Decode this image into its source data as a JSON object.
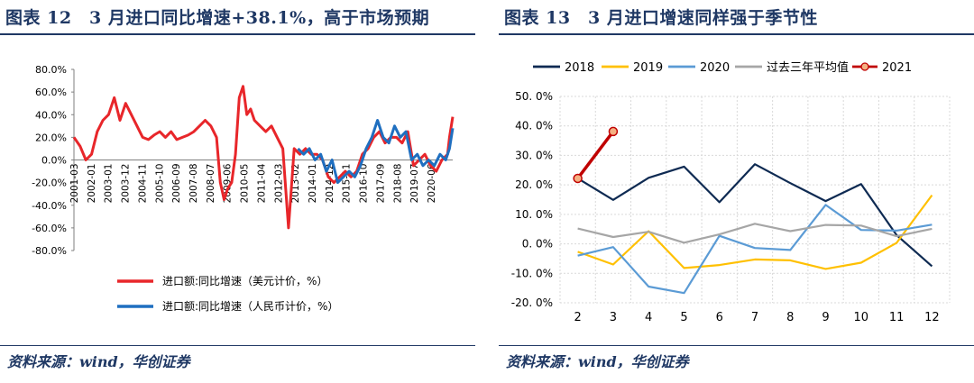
{
  "left": {
    "title": "图表 12　3 月进口同比增速+38.1%，高于市场预期",
    "source": "资料来源：wind，华创证券"
  },
  "right": {
    "title": "图表 13　3 月进口增速同样强于季节性",
    "source": "资料来源：wind，华创证券"
  },
  "chart_data": [
    {
      "type": "line",
      "title": "",
      "xlabel": "",
      "ylabel": "",
      "ylim": [
        -0.8,
        0.8
      ],
      "y_ticks": [
        "80.0%",
        "60.0%",
        "40.0%",
        "20.0%",
        "0.0%",
        "-20.0%",
        "-40.0%",
        "-60.0%",
        "-80.0%"
      ],
      "x_ticks": [
        "2001-03",
        "2002-01",
        "2003-01",
        "2003-12",
        "2004-11",
        "2005-10",
        "2006-09",
        "2007-08",
        "2008-07",
        "2009-06",
        "2010-05",
        "2011-04",
        "2012-03",
        "2013-02",
        "2014-01",
        "2014-12",
        "2015-11",
        "2016-10",
        "2017-09",
        "2018-08",
        "2019-07",
        "2020-06"
      ],
      "legend_position": "bottom",
      "grid": false,
      "series": [
        {
          "name": "进口额:同比增速（美元计价，%）",
          "color": "#e8262a",
          "x": [
            2001.17,
            2001.5,
            2001.8,
            2002.1,
            2002.4,
            2002.7,
            2003.0,
            2003.3,
            2003.6,
            2003.9,
            2004.2,
            2004.5,
            2004.8,
            2005.1,
            2005.4,
            2005.7,
            2006.0,
            2006.3,
            2006.6,
            2006.9,
            2007.2,
            2007.5,
            2007.8,
            2008.1,
            2008.4,
            2008.7,
            2008.9,
            2009.1,
            2009.3,
            2009.5,
            2009.7,
            2009.9,
            2010.1,
            2010.3,
            2010.5,
            2010.7,
            2011.0,
            2011.3,
            2011.6,
            2011.9,
            2012.2,
            2012.5,
            2012.8,
            2013.1,
            2013.4,
            2013.7,
            2014.0,
            2014.3,
            2014.6,
            2014.9,
            2015.2,
            2015.5,
            2015.8,
            2016.1,
            2016.4,
            2016.7,
            2017.0,
            2017.3,
            2017.6,
            2017.9,
            2018.2,
            2018.5,
            2018.8,
            2019.1,
            2019.4,
            2019.7,
            2020.0,
            2020.3,
            2020.6,
            2020.9,
            2021.0,
            2021.17
          ],
          "values": [
            0.2,
            0.12,
            0.0,
            0.05,
            0.25,
            0.35,
            0.4,
            0.55,
            0.35,
            0.5,
            0.4,
            0.3,
            0.2,
            0.18,
            0.22,
            0.25,
            0.2,
            0.25,
            0.18,
            0.2,
            0.22,
            0.25,
            0.3,
            0.35,
            0.3,
            0.2,
            -0.2,
            -0.35,
            -0.25,
            -0.2,
            0.05,
            0.55,
            0.65,
            0.4,
            0.45,
            0.35,
            0.3,
            0.25,
            0.3,
            0.2,
            0.1,
            -0.6,
            0.1,
            0.05,
            0.1,
            0.05,
            0.05,
            0.0,
            -0.15,
            -0.2,
            -0.15,
            -0.1,
            -0.15,
            -0.1,
            0.05,
            0.1,
            0.2,
            0.25,
            0.15,
            0.2,
            0.2,
            0.15,
            0.25,
            -0.05,
            0.0,
            0.05,
            -0.05,
            -0.1,
            0.0,
            0.05,
            0.2,
            0.381
          ]
        },
        {
          "name": "进口额:同比增速（人民币计价，%）",
          "color": "#1f6fc0",
          "x": [
            2013.0,
            2013.3,
            2013.6,
            2013.9,
            2014.2,
            2014.5,
            2014.8,
            2015.1,
            2015.4,
            2015.7,
            2016.0,
            2016.3,
            2016.6,
            2016.9,
            2017.2,
            2017.5,
            2017.8,
            2018.1,
            2018.4,
            2018.7,
            2019.0,
            2019.3,
            2019.6,
            2019.9,
            2020.2,
            2020.5,
            2020.8,
            2021.0,
            2021.17
          ],
          "values": [
            0.1,
            0.05,
            0.1,
            0.0,
            0.05,
            -0.1,
            0.0,
            -0.2,
            -0.15,
            -0.1,
            -0.15,
            -0.05,
            0.1,
            0.2,
            0.35,
            0.2,
            0.15,
            0.3,
            0.2,
            0.25,
            0.0,
            0.05,
            -0.05,
            0.0,
            -0.05,
            0.05,
            0.0,
            0.1,
            0.28
          ]
        }
      ]
    },
    {
      "type": "line",
      "title": "",
      "xlabel": "",
      "ylabel": "",
      "ylim": [
        -20,
        50
      ],
      "y_ticks": [
        "50. 0%",
        "40. 0%",
        "30. 0%",
        "20. 0%",
        "10. 0%",
        "0. 0%",
        "-10. 0%",
        "-20. 0%"
      ],
      "categories": [
        "2",
        "3",
        "4",
        "5",
        "6",
        "7",
        "8",
        "9",
        "10",
        "11",
        "12"
      ],
      "legend_position": "top",
      "grid": true,
      "series": [
        {
          "name": "2018",
          "color": "#0e2a52",
          "marker": false,
          "values": [
            22.2,
            14.9,
            22.4,
            26.2,
            14.1,
            27.0,
            20.6,
            14.5,
            20.3,
            3.0,
            -7.6
          ]
        },
        {
          "name": "2019",
          "color": "#ffc000",
          "marker": false,
          "values": [
            -2.7,
            -7.0,
            4.3,
            -8.2,
            -7.2,
            -5.3,
            -5.6,
            -8.5,
            -6.4,
            0.3,
            16.5
          ]
        },
        {
          "name": "2020",
          "color": "#5b9bd5",
          "marker": false,
          "values": [
            -4.0,
            -1.1,
            -14.5,
            -16.7,
            2.7,
            -1.4,
            -2.1,
            13.2,
            4.7,
            4.5,
            6.5
          ]
        },
        {
          "name": "过去三年平均值",
          "color": "#a6a6a6",
          "marker": false,
          "values": [
            5.2,
            2.3,
            4.1,
            0.4,
            3.2,
            6.8,
            4.3,
            6.4,
            6.2,
            2.6,
            5.1
          ]
        },
        {
          "name": "2021",
          "color": "#c00000",
          "marker": true,
          "values": [
            22.2,
            38.1,
            null,
            null,
            null,
            null,
            null,
            null,
            null,
            null,
            null
          ]
        }
      ]
    }
  ]
}
